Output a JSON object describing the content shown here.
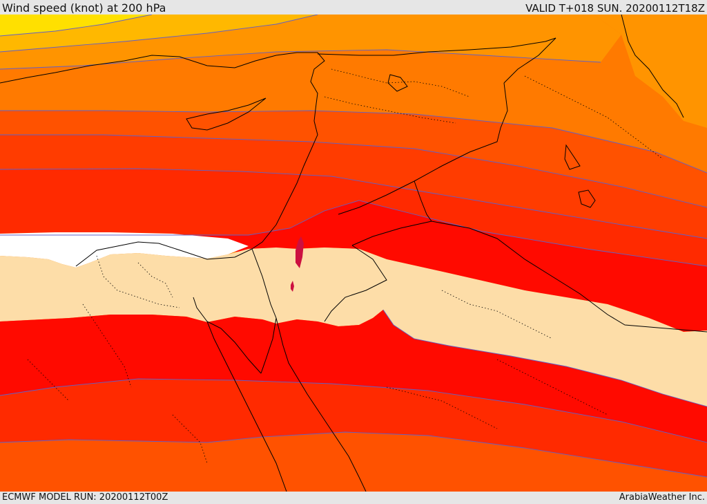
{
  "header": {
    "title": "Wind speed (knot) at 200 hPa",
    "valid_time": "VALID T+018 SUN. 20200112T18Z"
  },
  "footer": {
    "model_run": "ECMWF MODEL RUN: 20200112T00Z",
    "credit": "ArabiaWeather Inc."
  },
  "map": {
    "colors": {
      "yellow": "#ffe000",
      "yellow_orange": "#ffb800",
      "orange_light": "#ff9400",
      "orange": "#ff7a00",
      "orange_dark": "#ff6a00",
      "red_orange": "#ff5200",
      "red_orange_dark": "#ff3c00",
      "red": "#ff2a00",
      "red_core": "#ff0a00",
      "white": "#ffffff",
      "beige": "#fddda8",
      "crimson": "#cc1040",
      "contour": "#6060c8",
      "border": "#000000"
    }
  }
}
